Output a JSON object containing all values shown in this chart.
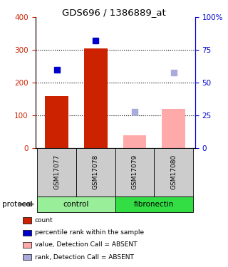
{
  "title": "GDS696 / 1386889_at",
  "samples": [
    "GSM17077",
    "GSM17078",
    "GSM17079",
    "GSM17080"
  ],
  "bar_values": [
    160,
    305,
    40,
    120
  ],
  "bar_colors": [
    "#cc2200",
    "#cc2200",
    "#ffaaaa",
    "#ffaaaa"
  ],
  "dot_values": [
    240,
    330,
    112,
    232
  ],
  "dot_colors": [
    "#0000cc",
    "#0000cc",
    "#aaaadd",
    "#aaaadd"
  ],
  "ylim_left": [
    0,
    400
  ],
  "ylim_right": [
    0,
    100
  ],
  "yticks_left": [
    0,
    100,
    200,
    300,
    400
  ],
  "yticks_right": [
    0,
    25,
    50,
    75,
    100
  ],
  "ytick_labels_right": [
    "0",
    "25",
    "50",
    "75",
    "100%"
  ],
  "grid_values": [
    100,
    200,
    300
  ],
  "bar_width": 0.6,
  "left_axis_color": "#cc2200",
  "right_axis_color": "#0000cc",
  "group_spans": [
    {
      "label": "control",
      "start": 0,
      "end": 1,
      "color": "#99ee99"
    },
    {
      "label": "fibronectin",
      "start": 2,
      "end": 3,
      "color": "#33dd44"
    }
  ],
  "protocol_label": "protocol",
  "legend_items": [
    {
      "label": "count",
      "color": "#cc2200"
    },
    {
      "label": "percentile rank within the sample",
      "color": "#0000cc"
    },
    {
      "label": "value, Detection Call = ABSENT",
      "color": "#ffaaaa"
    },
    {
      "label": "rank, Detection Call = ABSENT",
      "color": "#aaaadd"
    }
  ]
}
